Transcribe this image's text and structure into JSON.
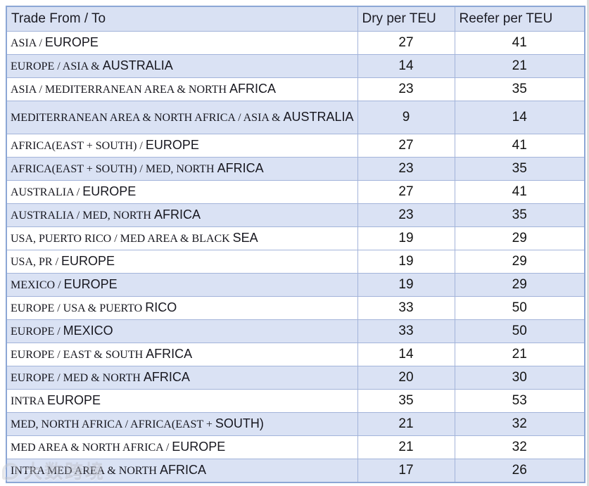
{
  "chart_data": {
    "type": "table",
    "columns": [
      "Trade From / To",
      "Dry per TEU",
      "Reefer per TEU"
    ],
    "rows": [
      {
        "trade": "ASIA / EUROPE",
        "dry": 27,
        "reefer": 41
      },
      {
        "trade": "EUROPE / ASIA & AUSTRALIA",
        "dry": 14,
        "reefer": 21
      },
      {
        "trade": "ASIA / MEDITERRANEAN AREA & NORTH AFRICA",
        "dry": 23,
        "reefer": 35
      },
      {
        "trade": "MEDITERRANEAN AREA & NORTH AFRICA / ASIA & AUSTRALIA",
        "dry": 9,
        "reefer": 14
      },
      {
        "trade": "AFRICA(EAST + SOUTH) / EUROPE",
        "dry": 27,
        "reefer": 41
      },
      {
        "trade": "AFRICA(EAST + SOUTH) / MED, NORTH AFRICA",
        "dry": 23,
        "reefer": 35
      },
      {
        "trade": "AUSTRALIA / EUROPE",
        "dry": 27,
        "reefer": 41
      },
      {
        "trade": "AUSTRALIA / MED, NORTH AFRICA",
        "dry": 23,
        "reefer": 35
      },
      {
        "trade": "USA, PUERTO RICO / MED AREA & BLACK SEA",
        "dry": 19,
        "reefer": 29
      },
      {
        "trade": "USA, PR / EUROPE",
        "dry": 19,
        "reefer": 29
      },
      {
        "trade": "MEXICO / EUROPE",
        "dry": 19,
        "reefer": 29
      },
      {
        "trade": "EUROPE / USA & PUERTO RICO",
        "dry": 33,
        "reefer": 50
      },
      {
        "trade": "EUROPE / MEXICO",
        "dry": 33,
        "reefer": 50
      },
      {
        "trade": "EUROPE / EAST & SOUTH AFRICA",
        "dry": 14,
        "reefer": 21
      },
      {
        "trade": "EUROPE / MED & NORTH AFRICA",
        "dry": 20,
        "reefer": 30
      },
      {
        "trade": "INTRA EUROPE",
        "dry": 35,
        "reefer": 53
      },
      {
        "trade": "MED, NORTH AFRICA / AFRICA(EAST + SOUTH)",
        "dry": 21,
        "reefer": 32
      },
      {
        "trade": "MED AREA & NORTH AFRICA / EUROPE",
        "dry": 21,
        "reefer": 32
      },
      {
        "trade": "INTRA MED AREA & NORTH AFRICA",
        "dry": 17,
        "reefer": 26
      }
    ]
  },
  "watermark": {
    "text": "大数跨境"
  },
  "colors": {
    "header_bg": "#d9e1f3",
    "row_alt_bg": "#dae2f4",
    "row_bg": "#ffffff",
    "grid_border": "#a3b4da",
    "outer_border": "#8ca7d5",
    "text": "#17171f"
  }
}
